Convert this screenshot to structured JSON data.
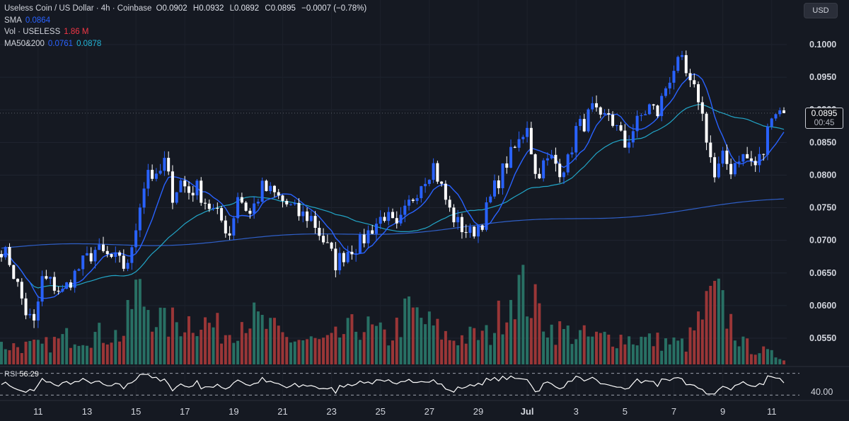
{
  "header": {
    "symbol": "Useless Coin / US Dollar · 4h · Coinbase",
    "o_label": "O",
    "o_value": "0.0902",
    "h_label": "H",
    "h_value": "0.0932",
    "l_label": "L",
    "l_value": "0.0892",
    "c_label": "C",
    "c_value": "0.0895",
    "change": "−0.0007 (−0.78%)"
  },
  "indicators": {
    "sma_label": "SMA",
    "sma_value": "0.0864",
    "vol_label": "Vol · USELESS",
    "vol_value": "1.86 M",
    "ma_label": "MA50&200",
    "ma50_value": "0.0761",
    "ma200_value": "0.0878"
  },
  "currency_button": "USD",
  "price_tag": {
    "price": "0.0895",
    "countdown": "00:45"
  },
  "rsi": {
    "label": "RSI",
    "value": "56.29",
    "level_label": "40.00"
  },
  "colors": {
    "background": "#151922",
    "up": "#2962ff",
    "down": "#ffffff",
    "sma": "#2962ff",
    "ma_short": "#22a6c8",
    "ma_long": "#2f5fc7",
    "vol_up": "#2a7a6c",
    "vol_down": "#a83a3a"
  },
  "chart_data": {
    "type": "candlestick",
    "price_axis": {
      "min": 0.05,
      "max": 0.105,
      "ticks": [
        "0.1000",
        "0.0950",
        "0.0900",
        "0.0850",
        "0.0800",
        "0.0750",
        "0.0700",
        "0.0650",
        "0.0600",
        "0.0550"
      ]
    },
    "x_ticks": [
      "11",
      "13",
      "15",
      "17",
      "19",
      "21",
      "23",
      "25",
      "27",
      "29",
      "Jul",
      "3",
      "5",
      "7",
      "9",
      "11"
    ],
    "x_tick_candle_index": [
      9,
      21,
      33,
      45,
      57,
      69,
      81,
      93,
      105,
      117,
      129,
      141,
      153,
      165,
      177,
      189
    ],
    "anchors": {
      "close": [
        [
          0,
          0.0688
        ],
        [
          2,
          0.0668
        ],
        [
          4,
          0.063
        ],
        [
          6,
          0.059
        ],
        [
          8,
          0.057
        ],
        [
          10,
          0.064
        ],
        [
          12,
          0.0635
        ],
        [
          15,
          0.062
        ],
        [
          17,
          0.064
        ],
        [
          20,
          0.0665
        ],
        [
          23,
          0.0685
        ],
        [
          26,
          0.0675
        ],
        [
          28,
          0.067
        ],
        [
          30,
          0.066
        ],
        [
          32,
          0.068
        ],
        [
          34,
          0.076
        ],
        [
          36,
          0.081
        ],
        [
          38,
          0.079
        ],
        [
          40,
          0.082
        ],
        [
          42,
          0.077
        ],
        [
          44,
          0.079
        ],
        [
          46,
          0.0775
        ],
        [
          48,
          0.078
        ],
        [
          50,
          0.076
        ],
        [
          52,
          0.0745
        ],
        [
          54,
          0.073
        ],
        [
          56,
          0.071
        ],
        [
          58,
          0.077
        ],
        [
          61,
          0.074
        ],
        [
          64,
          0.078
        ],
        [
          67,
          0.077
        ],
        [
          70,
          0.0755
        ],
        [
          73,
          0.074
        ],
        [
          76,
          0.0735
        ],
        [
          79,
          0.07
        ],
        [
          82,
          0.0665
        ],
        [
          85,
          0.0685
        ],
        [
          88,
          0.0695
        ],
        [
          91,
          0.072
        ],
        [
          94,
          0.074
        ],
        [
          97,
          0.0715
        ],
        [
          100,
          0.0755
        ],
        [
          103,
          0.079
        ],
        [
          106,
          0.0815
        ],
        [
          108,
          0.078
        ],
        [
          110,
          0.0745
        ],
        [
          112,
          0.0725
        ],
        [
          115,
          0.071
        ],
        [
          118,
          0.073
        ],
        [
          121,
          0.078
        ],
        [
          124,
          0.082
        ],
        [
          127,
          0.085
        ],
        [
          129,
          0.088
        ],
        [
          131,
          0.08
        ],
        [
          133,
          0.0815
        ],
        [
          135,
          0.0825
        ],
        [
          137,
          0.081
        ],
        [
          139,
          0.082
        ],
        [
          141,
          0.087
        ],
        [
          143,
          0.088
        ],
        [
          145,
          0.09
        ],
        [
          147,
          0.088
        ],
        [
          149,
          0.0895
        ],
        [
          151,
          0.087
        ],
        [
          153,
          0.0845
        ],
        [
          155,
          0.087
        ],
        [
          157,
          0.089
        ],
        [
          159,
          0.0905
        ],
        [
          161,
          0.0895
        ],
        [
          163,
          0.0935
        ],
        [
          165,
          0.0965
        ],
        [
          167,
          0.097
        ],
        [
          169,
          0.0935
        ],
        [
          171,
          0.092
        ],
        [
          173,
          0.086
        ],
        [
          175,
          0.0795
        ],
        [
          177,
          0.0825
        ],
        [
          179,
          0.081
        ],
        [
          181,
          0.083
        ],
        [
          183,
          0.0825
        ],
        [
          185,
          0.0815
        ],
        [
          187,
          0.0835
        ],
        [
          189,
          0.09
        ],
        [
          191,
          0.0898
        ],
        [
          192,
          0.0895
        ]
      ],
      "volume": [
        [
          0,
          0.95
        ],
        [
          10,
          0.9
        ],
        [
          18,
          1.5
        ],
        [
          30,
          1.5
        ],
        [
          32,
          3.0
        ],
        [
          33,
          3.7
        ],
        [
          40,
          2.0
        ],
        [
          48,
          2.3
        ],
        [
          55,
          1.6
        ],
        [
          60,
          2.5
        ],
        [
          70,
          1.3
        ],
        [
          80,
          1.1
        ],
        [
          88,
          2.0
        ],
        [
          95,
          1.3
        ],
        [
          100,
          2.7
        ],
        [
          110,
          1.3
        ],
        [
          120,
          1.5
        ],
        [
          126,
          4.0
        ],
        [
          128,
          3.7
        ],
        [
          135,
          1.8
        ],
        [
          145,
          1.3
        ],
        [
          150,
          1.4
        ],
        [
          160,
          1.2
        ],
        [
          168,
          1.0
        ],
        [
          175,
          3.5
        ],
        [
          178,
          2.5
        ],
        [
          182,
          1.0
        ],
        [
          192,
          0.3
        ]
      ]
    },
    "candle_count": 193,
    "ma_long": {
      "name": "MA50&200",
      "start_value": 0.0688,
      "end_value": 0.0761
    },
    "rsi": {
      "min": 20,
      "max": 80,
      "upper_band": 70,
      "lower_band": 30
    }
  }
}
